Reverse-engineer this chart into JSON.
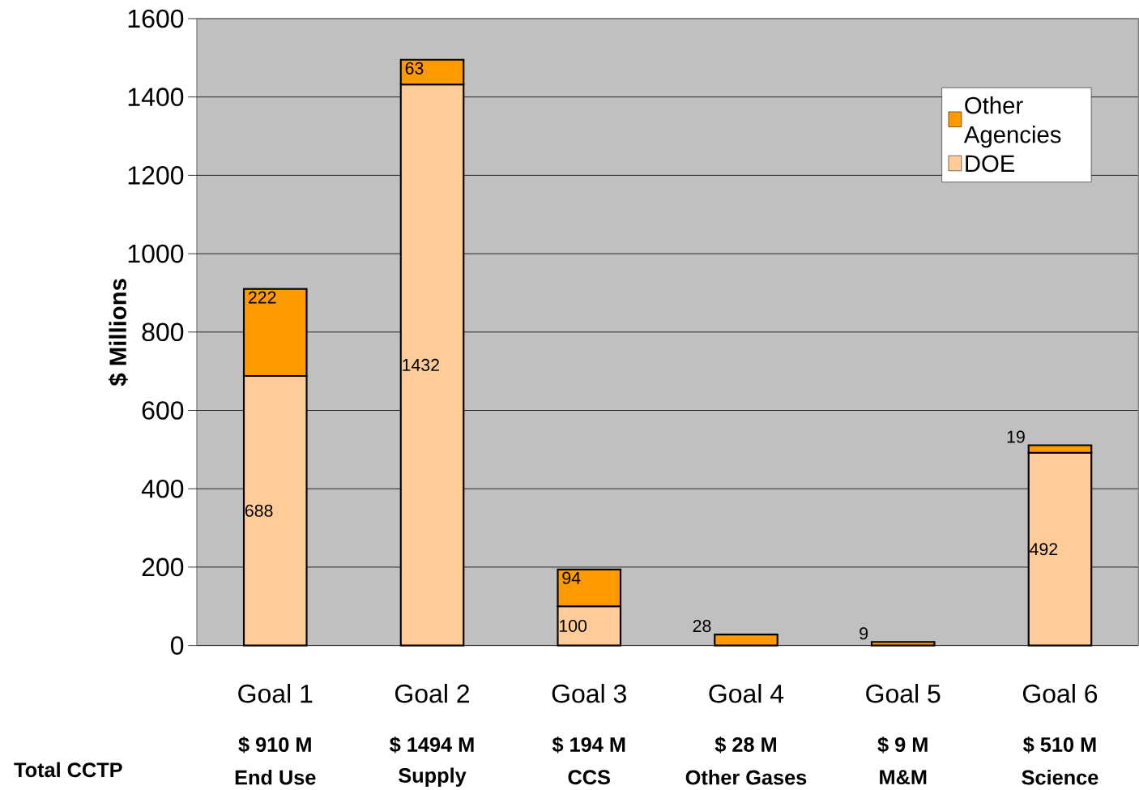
{
  "chart_data": {
    "type": "bar",
    "stacked": true,
    "ylabel": "$ Millions",
    "categories": [
      "Goal 1",
      "Goal 2",
      "Goal 3",
      "Goal 4",
      "Goal 5",
      "Goal 6"
    ],
    "series": [
      {
        "name": "DOE",
        "color": "#ffcc99",
        "values": [
          688,
          1432,
          100,
          null,
          null,
          492
        ],
        "value_labels": [
          "688",
          "1432",
          "100",
          null,
          null,
          "492"
        ]
      },
      {
        "name": "Other Agencies",
        "color": "#ff9900",
        "values": [
          222,
          63,
          94,
          28,
          9,
          19
        ],
        "value_labels": [
          "222",
          "63",
          "94",
          "28",
          "9",
          "19"
        ]
      }
    ],
    "annotations": [
      "Total CCTP",
      "$ 910 M",
      "$ 1494 M",
      "$ 194 M",
      "$ 28 M",
      "$ 9 M",
      "$ 510 M",
      "End Use",
      "Supply",
      "CCS",
      "Other Gases",
      "M&M",
      "Science"
    ],
    "ylim": [
      0,
      1600
    ],
    "yticks": [
      0,
      200,
      400,
      600,
      800,
      1000,
      1200,
      1400,
      1600
    ],
    "grid": "y",
    "legend": "top right"
  }
}
